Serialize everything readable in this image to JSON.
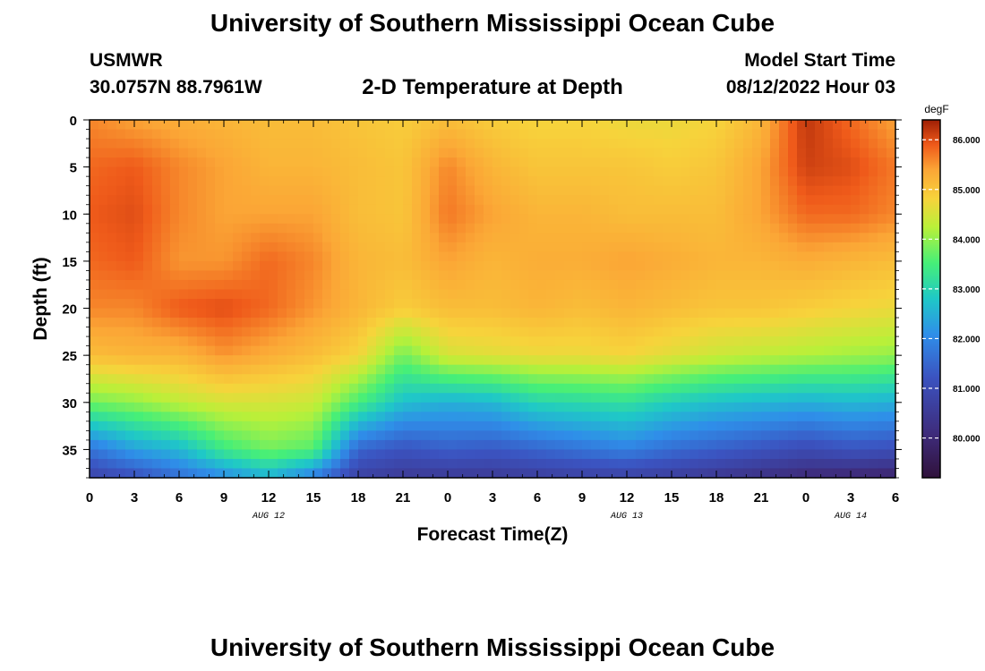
{
  "header": {
    "title": "University of Southern Mississippi Ocean Cube",
    "station": "USMWR",
    "coordinates": "30.0757N  88.7961W",
    "plot_title": "2-D Temperature at Depth",
    "model_start_label": "Model Start Time",
    "model_start_value": "08/12/2022 Hour 03"
  },
  "footer": {
    "title": "University of Southern Mississippi Ocean Cube"
  },
  "chart_data": {
    "type": "heatmap",
    "title": "2-D Temperature at Depth",
    "xlabel": "Forecast Time(Z)",
    "ylabel": "Depth (ft)",
    "x_range_hours": [
      0,
      54
    ],
    "x_tick_labels": [
      "0",
      "3",
      "6",
      "9",
      "12",
      "15",
      "18",
      "21",
      "0",
      "3",
      "6",
      "9",
      "12",
      "15",
      "18",
      "21",
      "0",
      "3",
      "6"
    ],
    "x_tick_hours": [
      0,
      3,
      6,
      9,
      12,
      15,
      18,
      21,
      24,
      27,
      30,
      33,
      36,
      39,
      42,
      45,
      48,
      51,
      54
    ],
    "date_labels": [
      {
        "label": "AUG 12",
        "hour": 12
      },
      {
        "label": "AUG 13",
        "hour": 36
      },
      {
        "label": "AUG 14",
        "hour": 51
      }
    ],
    "y_range_ft": [
      0,
      38
    ],
    "y_ticks": [
      0,
      5,
      10,
      15,
      20,
      25,
      30,
      35
    ],
    "y_tick_labels": [
      "0",
      "5",
      "10",
      "15",
      "20",
      "25",
      "30",
      "35"
    ],
    "colorbar": {
      "unit": "degF",
      "range": [
        79.2,
        86.4
      ],
      "ticks": [
        80,
        81,
        82,
        83,
        84,
        85,
        86
      ],
      "tick_labels": [
        "80.000",
        "81.000",
        "82.000",
        "83.000",
        "84.000",
        "85.000",
        "86.000"
      ]
    },
    "profiles": {
      "hours": [
        0,
        3,
        6,
        9,
        12,
        15,
        18,
        21,
        24,
        27,
        30,
        33,
        36,
        39,
        42,
        45,
        48,
        51,
        54
      ],
      "depths_ft": [
        0,
        5,
        10,
        15,
        20,
        25,
        30,
        35,
        38
      ],
      "temperature_degF": [
        [
          85.6,
          85.8,
          85.9,
          85.8,
          85.6,
          85.1,
          83.8,
          81.7,
          80.8
        ],
        [
          85.4,
          85.9,
          86.0,
          85.9,
          85.6,
          85.2,
          84.0,
          82.3,
          81.1
        ],
        [
          85.3,
          85.6,
          85.6,
          85.5,
          85.9,
          85.2,
          84.3,
          82.6,
          81.6
        ],
        [
          85.2,
          85.4,
          85.4,
          85.5,
          86.0,
          85.5,
          84.5,
          83.4,
          82.0
        ],
        [
          85.1,
          85.2,
          85.4,
          85.8,
          85.8,
          85.3,
          84.5,
          83.8,
          82.5
        ],
        [
          85.1,
          85.2,
          85.4,
          85.6,
          85.5,
          85.1,
          84.4,
          83.6,
          81.8
        ],
        [
          85.0,
          85.1,
          85.1,
          85.2,
          85.2,
          84.8,
          83.5,
          81.5,
          80.7
        ],
        [
          84.9,
          85.0,
          85.0,
          85.1,
          84.9,
          83.8,
          82.7,
          81.2,
          80.5
        ],
        [
          85.1,
          85.6,
          85.7,
          85.4,
          85.1,
          84.5,
          82.5,
          81.4,
          80.5
        ],
        [
          84.9,
          85.2,
          85.4,
          85.2,
          85.1,
          84.6,
          82.6,
          81.3,
          80.5
        ],
        [
          84.8,
          85.0,
          85.2,
          85.3,
          85.2,
          84.7,
          83.0,
          81.5,
          80.6
        ],
        [
          84.8,
          85.0,
          85.2,
          85.3,
          85.1,
          84.7,
          83.1,
          81.7,
          80.7
        ],
        [
          84.7,
          85.0,
          85.1,
          85.4,
          85.2,
          84.8,
          83.2,
          81.9,
          80.7
        ],
        [
          84.7,
          84.9,
          85.1,
          85.3,
          85.1,
          84.6,
          82.9,
          81.6,
          80.6
        ],
        [
          84.8,
          85.0,
          85.1,
          85.2,
          85.0,
          84.4,
          82.7,
          81.4,
          80.4
        ],
        [
          85.2,
          85.4,
          85.4,
          85.2,
          85.0,
          84.3,
          82.6,
          81.2,
          80.2
        ],
        [
          86.2,
          86.1,
          85.8,
          85.3,
          84.9,
          84.2,
          82.5,
          81.0,
          80.0
        ],
        [
          85.8,
          86.0,
          85.8,
          85.2,
          84.8,
          84.1,
          82.6,
          81.2,
          79.9
        ],
        [
          85.4,
          85.7,
          85.6,
          85.1,
          84.7,
          84.0,
          82.5,
          81.1,
          79.8
        ]
      ]
    }
  }
}
